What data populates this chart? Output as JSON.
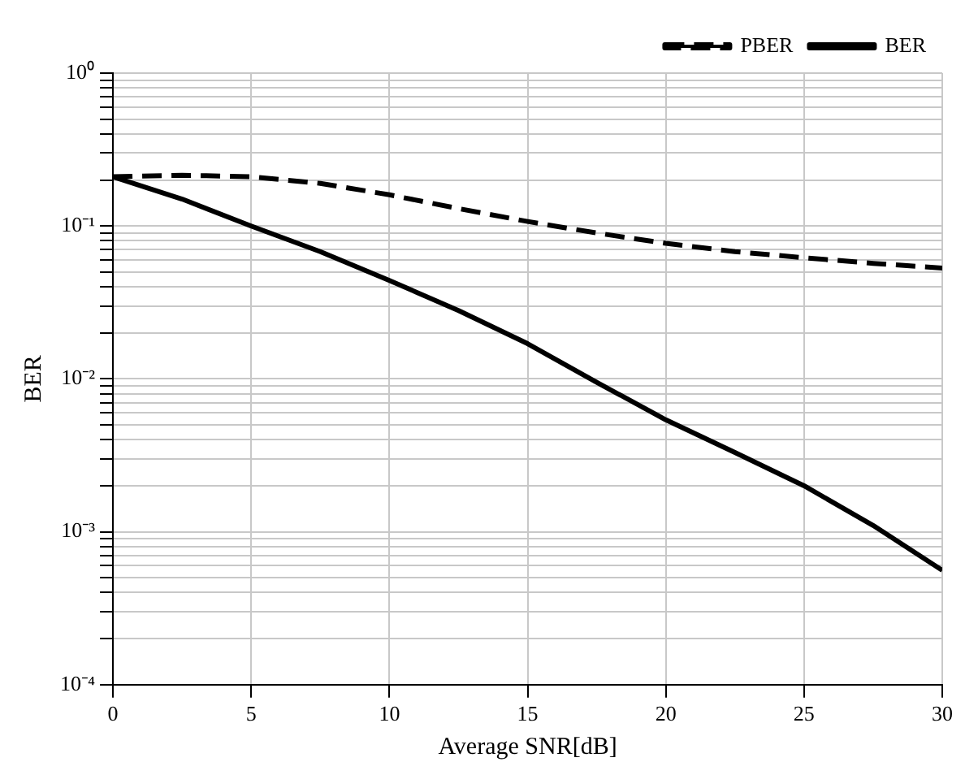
{
  "chart_data": {
    "type": "line",
    "xlabel": "Average SNR[dB]",
    "ylabel": "BER",
    "x": [
      0,
      2.5,
      5,
      7.5,
      10,
      12.5,
      15,
      17.5,
      20,
      22.5,
      25,
      27.5,
      30
    ],
    "series": [
      {
        "name": "PBER",
        "color": "#000000",
        "line_style": "dashed",
        "values": [
          0.21,
          0.215,
          0.21,
          0.19,
          0.16,
          0.13,
          0.107,
          0.09,
          0.077,
          0.068,
          0.062,
          0.057,
          0.053
        ]
      },
      {
        "name": "BER",
        "color": "#000000",
        "line_style": "solid",
        "values": [
          0.21,
          0.15,
          0.1,
          0.068,
          0.044,
          0.028,
          0.017,
          0.0095,
          0.0054,
          0.0033,
          0.002,
          0.0011,
          0.00056
        ]
      }
    ],
    "log": "y",
    "xlim": [
      0,
      30
    ],
    "xticks": [
      0,
      5,
      10,
      15,
      20,
      25,
      30
    ],
    "ylim": [
      0.0001,
      1
    ],
    "yticks": [
      {
        "value": 0.0001,
        "label": "10⁻⁴"
      },
      {
        "value": 0.0002,
        "label": null
      },
      {
        "value": 0.0003,
        "label": null
      },
      {
        "value": 0.0004,
        "label": null
      },
      {
        "value": 0.0005,
        "label": null
      },
      {
        "value": 0.0006,
        "label": null
      },
      {
        "value": 0.0007,
        "label": null
      },
      {
        "value": 0.0008,
        "label": null
      },
      {
        "value": 0.0009,
        "label": null
      },
      {
        "value": 0.001,
        "label": "10⁻³"
      },
      {
        "value": 0.002,
        "label": null
      },
      {
        "value": 0.003,
        "label": null
      },
      {
        "value": 0.004,
        "label": null
      },
      {
        "value": 0.005,
        "label": null
      },
      {
        "value": 0.006,
        "label": null
      },
      {
        "value": 0.007,
        "label": null
      },
      {
        "value": 0.008,
        "label": null
      },
      {
        "value": 0.009,
        "label": null
      },
      {
        "value": 0.01,
        "label": "10⁻²"
      },
      {
        "value": 0.02,
        "label": null
      },
      {
        "value": 0.03,
        "label": null
      },
      {
        "value": 0.04,
        "label": null
      },
      {
        "value": 0.05,
        "label": null
      },
      {
        "value": 0.06,
        "label": null
      },
      {
        "value": 0.07,
        "label": null
      },
      {
        "value": 0.08,
        "label": null
      },
      {
        "value": 0.09,
        "label": null
      },
      {
        "value": 0.1,
        "label": "10⁻¹"
      },
      {
        "value": 0.2,
        "label": null
      },
      {
        "value": 0.3,
        "label": null
      },
      {
        "value": 0.4,
        "label": null
      },
      {
        "value": 0.5,
        "label": null
      },
      {
        "value": 0.6,
        "label": null
      },
      {
        "value": 0.7,
        "label": null
      },
      {
        "value": 0.8,
        "label": null
      },
      {
        "value": 0.9,
        "label": null
      },
      {
        "value": 1,
        "label": "10⁰"
      }
    ],
    "grid": true,
    "legend": "top right",
    "marker": "none"
  }
}
